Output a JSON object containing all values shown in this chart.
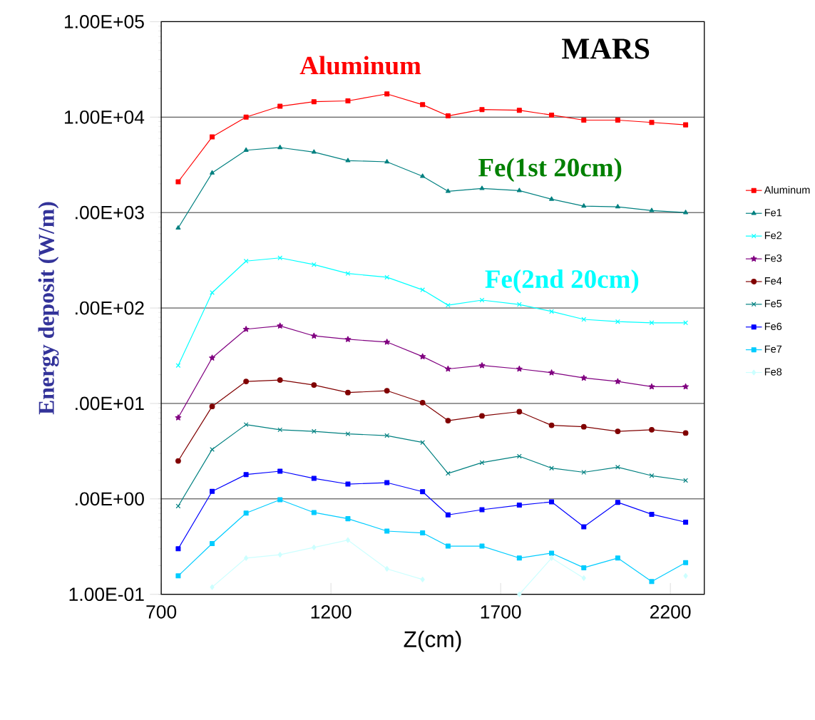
{
  "chart_data": {
    "type": "line",
    "xlabel": "Z(cm)",
    "ylabel": "Energy deposit (W/m)",
    "annotations": [
      "Aluminum",
      "MARS",
      "Fe(1st 20cm)",
      "Fe(2nd 20cm)"
    ],
    "x": [
      750,
      850,
      950,
      1050,
      1150,
      1250,
      1365,
      1470,
      1545,
      1645,
      1755,
      1850,
      1945,
      2045,
      2145,
      2245
    ],
    "xlim": [
      700,
      2300
    ],
    "xticks": [
      700,
      1200,
      1700,
      2200
    ],
    "ylim": [
      0.1,
      100000
    ],
    "log": "y",
    "yticks": [
      {
        "value": 0.1,
        "label": "1.00E-01"
      },
      {
        "value": 1,
        "label": ".00E+00"
      },
      {
        "value": 10,
        "label": ".00E+01"
      },
      {
        "value": 100,
        "label": ".00E+02"
      },
      {
        "value": 1000,
        "label": ".00E+03"
      },
      {
        "value": 10000,
        "label": "1.00E+04"
      },
      {
        "value": 100000,
        "label": "1.00E+05"
      }
    ],
    "grid": "y",
    "legend": "right",
    "line_style": "solid",
    "series": [
      {
        "name": "Aluminum",
        "color": "#ff0000",
        "marker": "square",
        "values": [
          2100,
          6200,
          10000,
          13000,
          14500,
          14800,
          17500,
          13500,
          10300,
          12000,
          11800,
          10500,
          9300,
          9300,
          8800,
          8300
        ]
      },
      {
        "name": "Fe1",
        "color": "#008080",
        "marker": "triangle",
        "values": [
          690,
          2600,
          4500,
          4800,
          4300,
          3500,
          3400,
          2400,
          1670,
          1790,
          1700,
          1380,
          1170,
          1150,
          1050,
          1000
        ]
      },
      {
        "name": "Fe2",
        "color": "#00ffff",
        "marker": "cross",
        "values": [
          25,
          145,
          310,
          335,
          285,
          230,
          210,
          155,
          107,
          121,
          109,
          92,
          76,
          72,
          70,
          70
        ]
      },
      {
        "name": "Fe3",
        "color": "#800080",
        "marker": "star",
        "values": [
          7.1,
          30,
          60,
          65,
          51,
          47,
          44,
          31,
          23,
          25,
          23,
          21,
          18.5,
          17,
          15,
          15
        ]
      },
      {
        "name": "Fe4",
        "color": "#800000",
        "marker": "circle",
        "values": [
          2.5,
          9.3,
          17,
          17.6,
          15.6,
          13,
          13.6,
          10.2,
          6.6,
          7.4,
          8.2,
          5.9,
          5.7,
          5.1,
          5.3,
          4.9
        ]
      },
      {
        "name": "Fe5",
        "color": "#008080",
        "marker": "cross",
        "values": [
          0.84,
          3.3,
          6,
          5.3,
          5.1,
          4.8,
          4.6,
          3.9,
          1.85,
          2.4,
          2.8,
          2.1,
          1.9,
          2.15,
          1.75,
          1.56
        ]
      },
      {
        "name": "Fe6",
        "color": "#0000ff",
        "marker": "square",
        "values": [
          0.3,
          1.2,
          1.8,
          1.95,
          1.64,
          1.43,
          1.48,
          1.19,
          0.68,
          0.77,
          0.86,
          0.93,
          0.51,
          0.92,
          0.69,
          0.57
        ]
      },
      {
        "name": "Fe7",
        "color": "#00ccff",
        "marker": "square",
        "values": [
          0.156,
          0.34,
          0.71,
          0.98,
          0.72,
          0.62,
          0.46,
          0.44,
          0.32,
          0.32,
          0.24,
          0.27,
          0.19,
          0.24,
          0.136,
          0.215
        ]
      },
      {
        "name": "Fe8",
        "color": "#ccffff",
        "marker": "diamond",
        "values": [
          null,
          0.119,
          0.24,
          0.26,
          0.31,
          0.37,
          0.185,
          0.143,
          null,
          null,
          0.1,
          0.24,
          0.148,
          null,
          null,
          0.156
        ]
      }
    ]
  }
}
